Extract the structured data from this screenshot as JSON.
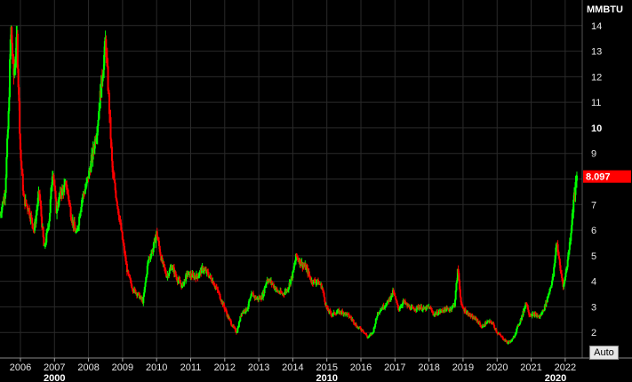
{
  "colors": {
    "background": "#000000",
    "grid": "#2a2a2a",
    "up": "#00ff00",
    "down": "#ff0000",
    "axis_text": "#e6e6e6",
    "last_price_bg": "#ff0000"
  },
  "chart_data": {
    "type": "candlestick",
    "unit_label": "MMBTU",
    "ylim": [
      1,
      15
    ],
    "yticks": [
      {
        "value": 14,
        "label": "14"
      },
      {
        "value": 13,
        "label": "13"
      },
      {
        "value": 12,
        "label": "12"
      },
      {
        "value": 11,
        "label": "11"
      },
      {
        "value": 10,
        "label": "10",
        "major": true
      },
      {
        "value": 9,
        "label": "9"
      },
      {
        "value": 8,
        "label": "8"
      },
      {
        "value": 7,
        "label": "7"
      },
      {
        "value": 6,
        "label": "6"
      },
      {
        "value": 5,
        "label": "5"
      },
      {
        "value": 4,
        "label": "4"
      },
      {
        "value": 3,
        "label": "3"
      },
      {
        "value": 2,
        "label": "2"
      }
    ],
    "xlim": [
      2005.4,
      2022.5
    ],
    "xticks": [
      {
        "value": 2006,
        "label": "2006"
      },
      {
        "value": 2007,
        "label": "2007"
      },
      {
        "value": 2008,
        "label": "2008"
      },
      {
        "value": 2009,
        "label": "2009"
      },
      {
        "value": 2010,
        "label": "2010"
      },
      {
        "value": 2011,
        "label": "2011"
      },
      {
        "value": 2012,
        "label": "2012"
      },
      {
        "value": 2013,
        "label": "2013"
      },
      {
        "value": 2014,
        "label": "2014"
      },
      {
        "value": 2015,
        "label": "2015"
      },
      {
        "value": 2016,
        "label": "2016"
      },
      {
        "value": 2017,
        "label": "2017"
      },
      {
        "value": 2018,
        "label": "2018"
      },
      {
        "value": 2019,
        "label": "2019"
      },
      {
        "value": 2020,
        "label": "2020"
      },
      {
        "value": 2021,
        "label": "2021"
      },
      {
        "value": 2022,
        "label": "2022"
      }
    ],
    "decades": [
      {
        "value": 2007.0,
        "label": "2000"
      },
      {
        "value": 2015.0,
        "label": "2010"
      },
      {
        "value": 2024.0,
        "label": "2020"
      }
    ],
    "last_price": {
      "value": 8.097,
      "label": "8.097"
    },
    "price_path": [
      [
        2005.4,
        6.6
      ],
      [
        2005.55,
        7.5
      ],
      [
        2005.65,
        10.5
      ],
      [
        2005.72,
        14.0
      ],
      [
        2005.8,
        12.0
      ],
      [
        2005.9,
        13.5
      ],
      [
        2006.0,
        9.0
      ],
      [
        2006.1,
        7.2
      ],
      [
        2006.25,
        6.8
      ],
      [
        2006.4,
        6.0
      ],
      [
        2006.55,
        7.5
      ],
      [
        2006.7,
        5.2
      ],
      [
        2006.85,
        6.5
      ],
      [
        2006.95,
        8.5
      ],
      [
        2007.05,
        6.8
      ],
      [
        2007.2,
        7.5
      ],
      [
        2007.35,
        7.8
      ],
      [
        2007.5,
        6.5
      ],
      [
        2007.65,
        5.8
      ],
      [
        2007.8,
        7.2
      ],
      [
        2007.95,
        7.8
      ],
      [
        2008.1,
        8.8
      ],
      [
        2008.25,
        10.0
      ],
      [
        2008.4,
        12.0
      ],
      [
        2008.5,
        13.4
      ],
      [
        2008.6,
        11.0
      ],
      [
        2008.7,
        8.3
      ],
      [
        2008.85,
        7.0
      ],
      [
        2009.0,
        5.6
      ],
      [
        2009.15,
        4.3
      ],
      [
        2009.3,
        3.7
      ],
      [
        2009.45,
        3.5
      ],
      [
        2009.6,
        3.2
      ],
      [
        2009.75,
        4.8
      ],
      [
        2009.9,
        5.3
      ],
      [
        2010.0,
        5.9
      ],
      [
        2010.15,
        4.8
      ],
      [
        2010.3,
        4.2
      ],
      [
        2010.45,
        4.6
      ],
      [
        2010.6,
        4.1
      ],
      [
        2010.75,
        3.8
      ],
      [
        2010.9,
        4.3
      ],
      [
        2011.05,
        4.2
      ],
      [
        2011.2,
        4.2
      ],
      [
        2011.35,
        4.5
      ],
      [
        2011.5,
        4.3
      ],
      [
        2011.65,
        4.0
      ],
      [
        2011.8,
        3.6
      ],
      [
        2011.95,
        3.1
      ],
      [
        2012.1,
        2.6
      ],
      [
        2012.25,
        2.2
      ],
      [
        2012.35,
        2.0
      ],
      [
        2012.5,
        2.8
      ],
      [
        2012.65,
        2.9
      ],
      [
        2012.8,
        3.5
      ],
      [
        2012.95,
        3.3
      ],
      [
        2013.1,
        3.4
      ],
      [
        2013.25,
        4.1
      ],
      [
        2013.4,
        3.9
      ],
      [
        2013.55,
        3.6
      ],
      [
        2013.7,
        3.5
      ],
      [
        2013.85,
        3.7
      ],
      [
        2014.0,
        4.3
      ],
      [
        2014.1,
        5.0
      ],
      [
        2014.25,
        4.7
      ],
      [
        2014.4,
        4.5
      ],
      [
        2014.55,
        4.0
      ],
      [
        2014.7,
        4.0
      ],
      [
        2014.85,
        3.8
      ],
      [
        2015.0,
        2.9
      ],
      [
        2015.15,
        2.7
      ],
      [
        2015.3,
        2.8
      ],
      [
        2015.45,
        2.8
      ],
      [
        2015.6,
        2.7
      ],
      [
        2015.75,
        2.5
      ],
      [
        2015.9,
        2.2
      ],
      [
        2016.05,
        2.1
      ],
      [
        2016.2,
        1.8
      ],
      [
        2016.35,
        2.0
      ],
      [
        2016.5,
        2.8
      ],
      [
        2016.65,
        3.0
      ],
      [
        2016.8,
        3.2
      ],
      [
        2016.95,
        3.6
      ],
      [
        2017.1,
        2.9
      ],
      [
        2017.25,
        3.2
      ],
      [
        2017.4,
        3.0
      ],
      [
        2017.55,
        2.9
      ],
      [
        2017.7,
        3.0
      ],
      [
        2017.85,
        2.9
      ],
      [
        2018.0,
        3.0
      ],
      [
        2018.15,
        2.7
      ],
      [
        2018.3,
        2.8
      ],
      [
        2018.45,
        2.9
      ],
      [
        2018.6,
        2.9
      ],
      [
        2018.75,
        3.1
      ],
      [
        2018.85,
        4.5
      ],
      [
        2018.95,
        3.0
      ],
      [
        2019.1,
        2.8
      ],
      [
        2019.25,
        2.6
      ],
      [
        2019.4,
        2.5
      ],
      [
        2019.55,
        2.2
      ],
      [
        2019.7,
        2.4
      ],
      [
        2019.85,
        2.4
      ],
      [
        2020.0,
        2.0
      ],
      [
        2020.15,
        1.8
      ],
      [
        2020.3,
        1.6
      ],
      [
        2020.45,
        1.7
      ],
      [
        2020.6,
        2.2
      ],
      [
        2020.75,
        2.7
      ],
      [
        2020.85,
        3.2
      ],
      [
        2020.95,
        2.7
      ],
      [
        2021.1,
        2.7
      ],
      [
        2021.25,
        2.6
      ],
      [
        2021.4,
        3.0
      ],
      [
        2021.55,
        3.7
      ],
      [
        2021.65,
        4.2
      ],
      [
        2021.75,
        5.6
      ],
      [
        2021.85,
        4.5
      ],
      [
        2021.95,
        3.8
      ],
      [
        2022.05,
        4.6
      ],
      [
        2022.15,
        5.7
      ],
      [
        2022.25,
        7.2
      ],
      [
        2022.35,
        8.1
      ]
    ]
  },
  "controls": {
    "auto_label": "Auto"
  }
}
